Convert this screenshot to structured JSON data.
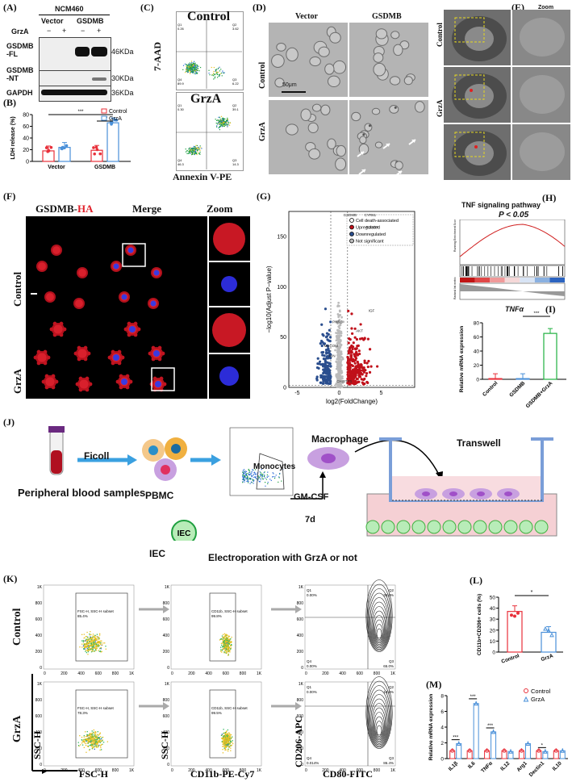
{
  "panel_labels": [
    "(A)",
    "(B)",
    "(C)",
    "(D)",
    "(E)",
    "(F)",
    "(G)",
    "(H)",
    "(I)",
    "(J)",
    "(K)",
    "(L)",
    "(M)"
  ],
  "A": {
    "cell_line": "NCM460",
    "groups": [
      "Vector",
      "GSDMB"
    ],
    "row_label": "GrzA",
    "signs": [
      "−",
      "+",
      "−",
      "+"
    ],
    "bands": [
      {
        "name": "GSDMB\n-FL",
        "kda": "46KDa"
      },
      {
        "name": "GSDMB\n-NT",
        "kda": "30KDa"
      },
      {
        "name": "GAPDH",
        "kda": "36KDa"
      }
    ]
  },
  "B": {
    "legend": [
      "Control",
      "GrzA"
    ],
    "colors": {
      "control": "#e8303a",
      "grza": "#4a90d9"
    },
    "sig": [
      "***",
      "***"
    ]
  },
  "C": {
    "conditions": [
      "Control",
      "GrzA"
    ],
    "ylabel": "7-AAD",
    "xlabel": "Annexin V-PE",
    "quads_control": [
      "Q1\n0.26",
      "Q2\n3.62",
      "Q4\n89.9",
      "Q3\n6.22"
    ],
    "quads_grza": [
      "Q1\n0.30",
      "Q2\n39.1",
      "Q4\n46.3",
      "Q3\n14.3"
    ]
  },
  "D": {
    "cols": [
      "Vector",
      "GSDMB"
    ],
    "rows": [
      "Control",
      "GrzA"
    ],
    "scale": "50μm"
  },
  "E": {
    "zoom": "Zoom",
    "rows": [
      "Control",
      "GrzA"
    ]
  },
  "F": {
    "col1a": "GSDMB-",
    "col1b": "HA",
    "col2": "Merge",
    "col3": "Zoom",
    "rows": [
      "Control",
      "GrzA"
    ]
  },
  "G": {
    "xlabel": "log2(FoldChange)",
    "ylabel": "−log10(Adjust P−value)",
    "legend": [
      "Cell death-associated",
      "Upregulated",
      "Downregulated",
      "Not significant"
    ],
    "genes": [
      "GSDMB",
      "CYR61",
      "FOXO3",
      "PNRC",
      "AKT",
      "MECOM",
      "JUN",
      "CHIBTP1",
      "IGF"
    ]
  },
  "H": {
    "title": "TNF signaling pathway",
    "pvalue": "P < 0.05"
  },
  "I": {
    "title": "TNFα",
    "ylabel": "Relative mRNA expression",
    "sig": "***",
    "categories": [
      "Control",
      "GSDMB",
      "GSDMB+GrzA"
    ]
  },
  "J": {
    "blood": "Peripheral blood samples",
    "ficoll": "Ficoll",
    "pbmc": "PBMC",
    "monocytes": "Monocytes",
    "macrophage": "Macrophage",
    "gmcsf": "GM-CSF",
    "days": "7d",
    "transwell": "Transwell",
    "iec": "IEC",
    "iec_cell": "IEC",
    "electro": "Electroporation with GrzA or not"
  },
  "K": {
    "rows": [
      "Control",
      "GrzA"
    ],
    "axis": {
      "x1": "FSC-H",
      "y1": "SSC-H",
      "x2": "CD11b-PE-Cy7",
      "y2": "SSC-H",
      "x3": "CD80-FITC",
      "y3": "CD206-APC"
    },
    "ctrl": {
      "g1": "FSC-H, SSC-H subset\n85.4%",
      "g2": "CD11b, SSC-H subset\n99.8%",
      "q1": "Q1\n0.00%",
      "q2": "Q2\n35.0%",
      "q4": "Q4\n0.00%",
      "q3": "Q3\n65.0%"
    },
    "grza": {
      "g1": "FSC-H, SSC-H subset\n78.3%",
      "g2": "CD11b, SSC-H subset\n99.5%",
      "q1": "Q1\n0.00%",
      "q2": "Q2\n13.6%",
      "q4": "Q4\n0.014%",
      "q3": "Q3\n86.4%"
    },
    "ticks": [
      "0",
      "200",
      "400",
      "600",
      "800",
      "1K"
    ]
  },
  "L": {
    "ylabel": "CD11b+CD206+ cells (%)",
    "sig": "*",
    "categories": [
      "Control",
      "GrzA"
    ]
  },
  "M": {
    "ylabel": "Relative mRNA expression",
    "legend": [
      "Control",
      "GrzA"
    ],
    "genes": [
      "IL1β",
      "IL6",
      "TNFα",
      "IL12",
      "Arg1",
      "Dectin1",
      "IL10"
    ],
    "sig": [
      "***",
      "***",
      "***",
      "*"
    ]
  },
  "chart_data": [
    {
      "type": "bar",
      "id": "B",
      "ylabel": "LDH release (%)",
      "ylim": [
        0,
        80
      ],
      "yticks": [
        0,
        20,
        40,
        60,
        80
      ],
      "categories": [
        "Vector",
        "GSDMB"
      ],
      "series": [
        {
          "name": "Control",
          "values": [
            18,
            19
          ]
        },
        {
          "name": "GrzA",
          "values": [
            24,
            66
          ]
        }
      ]
    },
    {
      "type": "bar",
      "id": "I",
      "ylim": [
        0,
        80
      ],
      "yticks": [
        0,
        20,
        40,
        60,
        80
      ],
      "categories": [
        "Control",
        "GSDMB",
        "GSDMB+GrzA"
      ],
      "values": [
        1,
        1,
        65
      ]
    },
    {
      "type": "bar",
      "id": "L",
      "ylim": [
        0,
        50
      ],
      "yticks": [
        0,
        10,
        20,
        30,
        40,
        50
      ],
      "categories": [
        "Control",
        "GrzA"
      ],
      "values": [
        37,
        18
      ]
    },
    {
      "type": "bar",
      "id": "M",
      "ylim": [
        0,
        8
      ],
      "yticks": [
        0,
        2,
        4,
        6,
        8
      ],
      "categories": [
        "IL1β",
        "IL6",
        "TNFα",
        "IL12",
        "Arg1",
        "Dectin1",
        "IL10"
      ],
      "series": [
        {
          "name": "Control",
          "values": [
            1,
            1,
            1,
            1,
            1,
            1,
            1
          ]
        },
        {
          "name": "GrzA",
          "values": [
            1.9,
            7.0,
            3.4,
            0.9,
            1.9,
            0.9,
            1.0
          ]
        }
      ]
    },
    {
      "type": "scatter",
      "id": "G",
      "xlim": [
        -6,
        9
      ],
      "ylim": [
        0,
        175
      ],
      "xticks": [
        -5,
        0,
        5
      ],
      "yticks": [
        0,
        50,
        100,
        150
      ]
    }
  ]
}
